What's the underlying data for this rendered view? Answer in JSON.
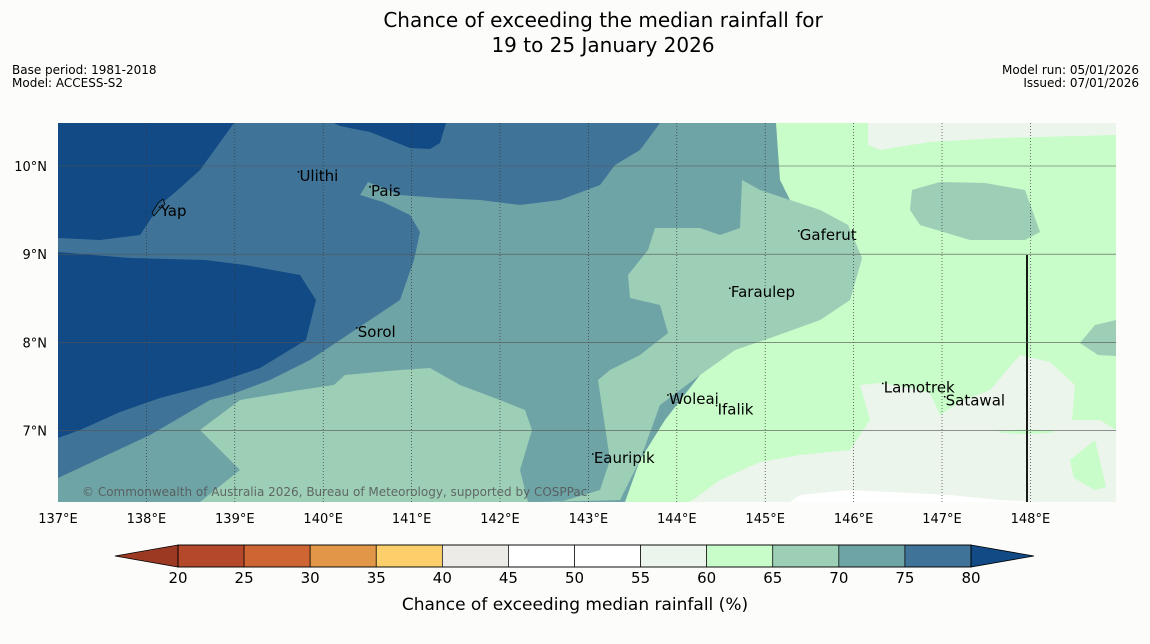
{
  "header": {
    "title_line1": "Chance of exceeding the median rainfall for",
    "title_line2": "19 to 25 January 2026",
    "base_period": "Base period: 1981-2018",
    "model": "Model: ACCESS-S2",
    "model_run": "Model run: 05/01/2026",
    "issued": "Issued: 07/01/2026"
  },
  "map": {
    "copyright": "© Commonwealth of Australia 2026, Bureau of Meteorology, supported by COSPPac",
    "lon_ticks": [
      "137°E",
      "138°E",
      "139°E",
      "140°E",
      "141°E",
      "142°E",
      "143°E",
      "144°E",
      "145°E",
      "146°E",
      "147°E",
      "148°E"
    ],
    "lat_ticks": [
      "10°N",
      "9°N",
      "8°N",
      "7°N"
    ],
    "places": [
      {
        "name": "Yap",
        "lon": 138.15,
        "lat": 9.5
      },
      {
        "name": "Ulithi",
        "lon": 139.72,
        "lat": 9.9
      },
      {
        "name": "Pais",
        "lon": 140.53,
        "lat": 9.73
      },
      {
        "name": "Gaferut",
        "lon": 145.38,
        "lat": 9.23
      },
      {
        "name": "Faraulep",
        "lon": 144.6,
        "lat": 8.58
      },
      {
        "name": "Sorol",
        "lon": 140.38,
        "lat": 8.13
      },
      {
        "name": "Lamotrek",
        "lon": 146.33,
        "lat": 7.5
      },
      {
        "name": "Woleai",
        "lon": 143.9,
        "lat": 7.37
      },
      {
        "name": "Ifalik",
        "lon": 144.45,
        "lat": 7.25
      },
      {
        "name": "Satawal",
        "lon": 147.03,
        "lat": 7.35
      },
      {
        "name": "Eauripik",
        "lon": 143.05,
        "lat": 6.7
      }
    ]
  },
  "legend": {
    "title": "Chance of exceeding median rainfall (%)",
    "tick_labels": [
      "20",
      "25",
      "30",
      "35",
      "40",
      "45",
      "50",
      "55",
      "60",
      "65",
      "70",
      "75",
      "80"
    ],
    "band_colors": [
      "#b5472a",
      "#cf6532",
      "#e29648",
      "#fccf6a",
      "#ecebe8",
      "#ffffff",
      "#ffffff",
      "#ebf5eb",
      "#c8fcc8",
      "#9dcfb7",
      "#6fa4a6",
      "#3f7398"
    ],
    "under_color": "#9b3923",
    "over_color": "#114a85"
  }
}
